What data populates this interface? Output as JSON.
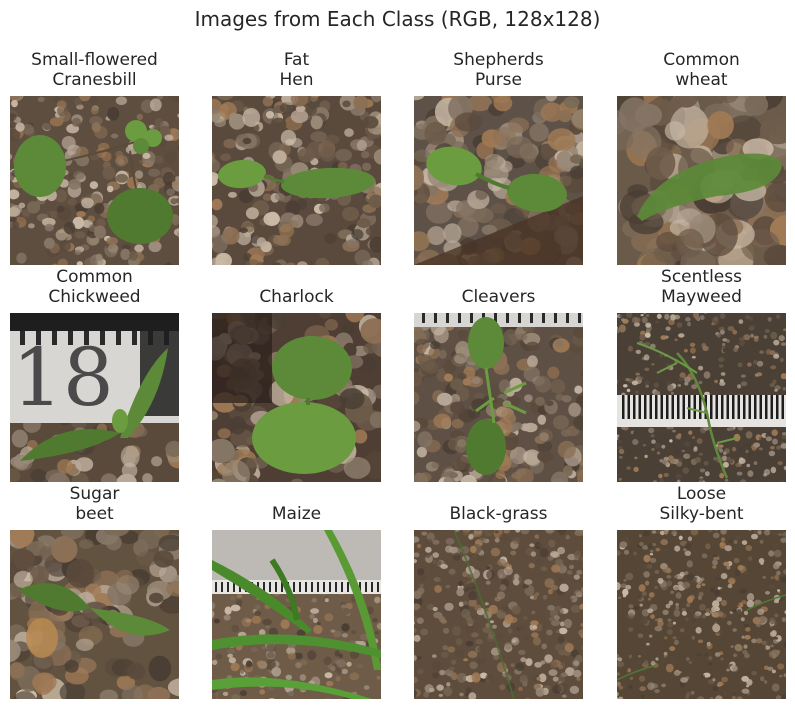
{
  "title": "Images from Each Class (RGB, 128x128)",
  "panels": [
    {
      "label_lines": [
        "Small-flowered",
        "Cranesbill"
      ]
    },
    {
      "label_lines": [
        "Fat",
        "Hen"
      ]
    },
    {
      "label_lines": [
        "Shepherds",
        "Purse"
      ]
    },
    {
      "label_lines": [
        "Common",
        "wheat"
      ]
    },
    {
      "label_lines": [
        "Common",
        "Chickweed"
      ]
    },
    {
      "label_lines": [
        "Charlock"
      ]
    },
    {
      "label_lines": [
        "Cleavers"
      ]
    },
    {
      "label_lines": [
        "Scentless",
        "Mayweed"
      ]
    },
    {
      "label_lines": [
        "Sugar",
        "beet"
      ]
    },
    {
      "label_lines": [
        "Maize"
      ]
    },
    {
      "label_lines": [
        "Black-grass"
      ]
    },
    {
      "label_lines": [
        "Loose",
        "Silky-bent"
      ]
    }
  ]
}
